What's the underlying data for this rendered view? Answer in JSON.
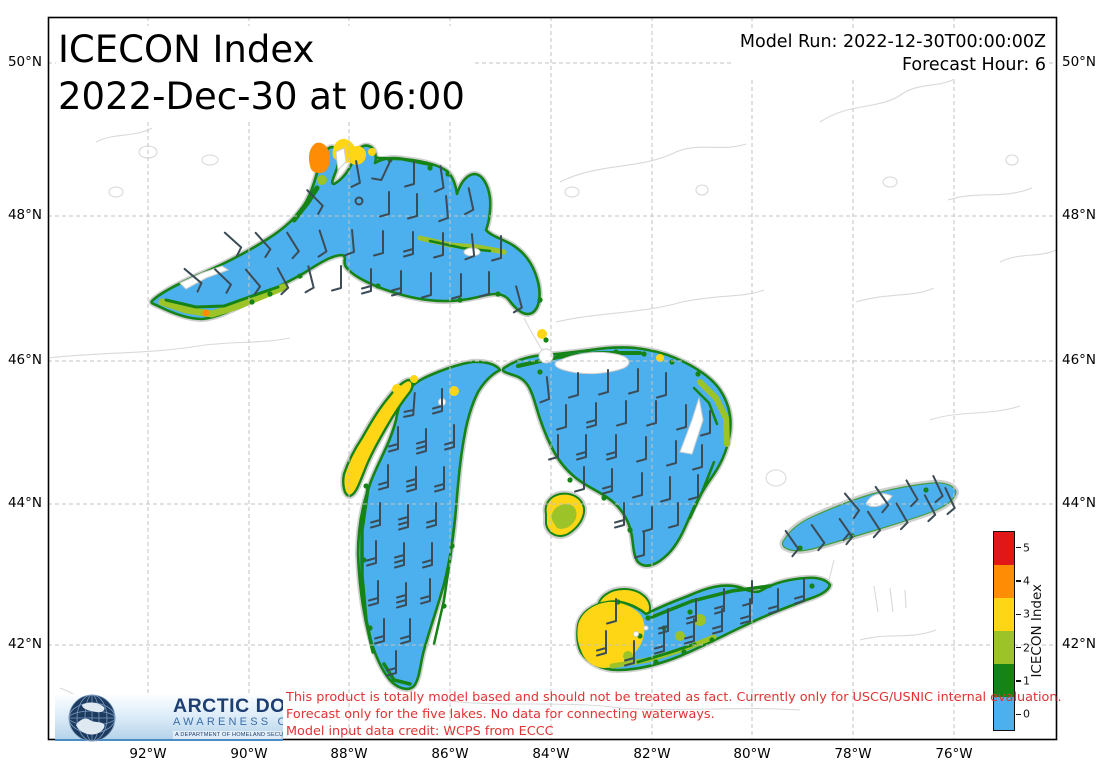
{
  "header": {
    "title_line1": "ICECON Index",
    "title_line2": "2022-Dec-30 at 06:00",
    "model_run": "Model Run: 2022-12-30T00:00:00Z",
    "forecast_hour": "Forecast Hour: 6"
  },
  "axes": {
    "lat_labels": [
      "50°N",
      "48°N",
      "46°N",
      "44°N",
      "42°N"
    ],
    "lon_labels": [
      "92°W",
      "90°W",
      "88°W",
      "86°W",
      "84°W",
      "82°W",
      "80°W",
      "78°W",
      "76°W"
    ]
  },
  "colorbar": {
    "title": "ICECON Index",
    "levels": [
      {
        "value": "5",
        "color": "#e11717"
      },
      {
        "value": "4",
        "color": "#ff8c05"
      },
      {
        "value": "3",
        "color": "#ffd616"
      },
      {
        "value": "2",
        "color": "#9cc327"
      },
      {
        "value": "1",
        "color": "#158315"
      },
      {
        "value": "0",
        "color": "#4db0ee"
      }
    ]
  },
  "footer": {
    "disclaimer1": "This product is totally model based and should not be treated as fact. Currently only for USCG/USNIC internal evaluation.",
    "disclaimer2": "Forecast only for the five lakes. No data for connecting waterways.",
    "disclaimer3": "Model input data credit: WCPS from ECCC",
    "text_color": "#e03333"
  },
  "logo": {
    "line1": "ARCTIC DOMAIN",
    "line2": "AWARENESS CENTER",
    "line3": "A DEPARTMENT OF HOMELAND SECURITY CENTER OF EXCELLENCE"
  },
  "map": {
    "lake_color": "#4db0ee",
    "ice_green": "#158315",
    "ice_yellow_green": "#9cc327",
    "ice_yellow": "#ffd616",
    "ice_orange": "#ff8c05",
    "barb_color": "#3c4c57",
    "gridline_color": "#c3c3c3",
    "coast_color": "#d9d9d9"
  }
}
